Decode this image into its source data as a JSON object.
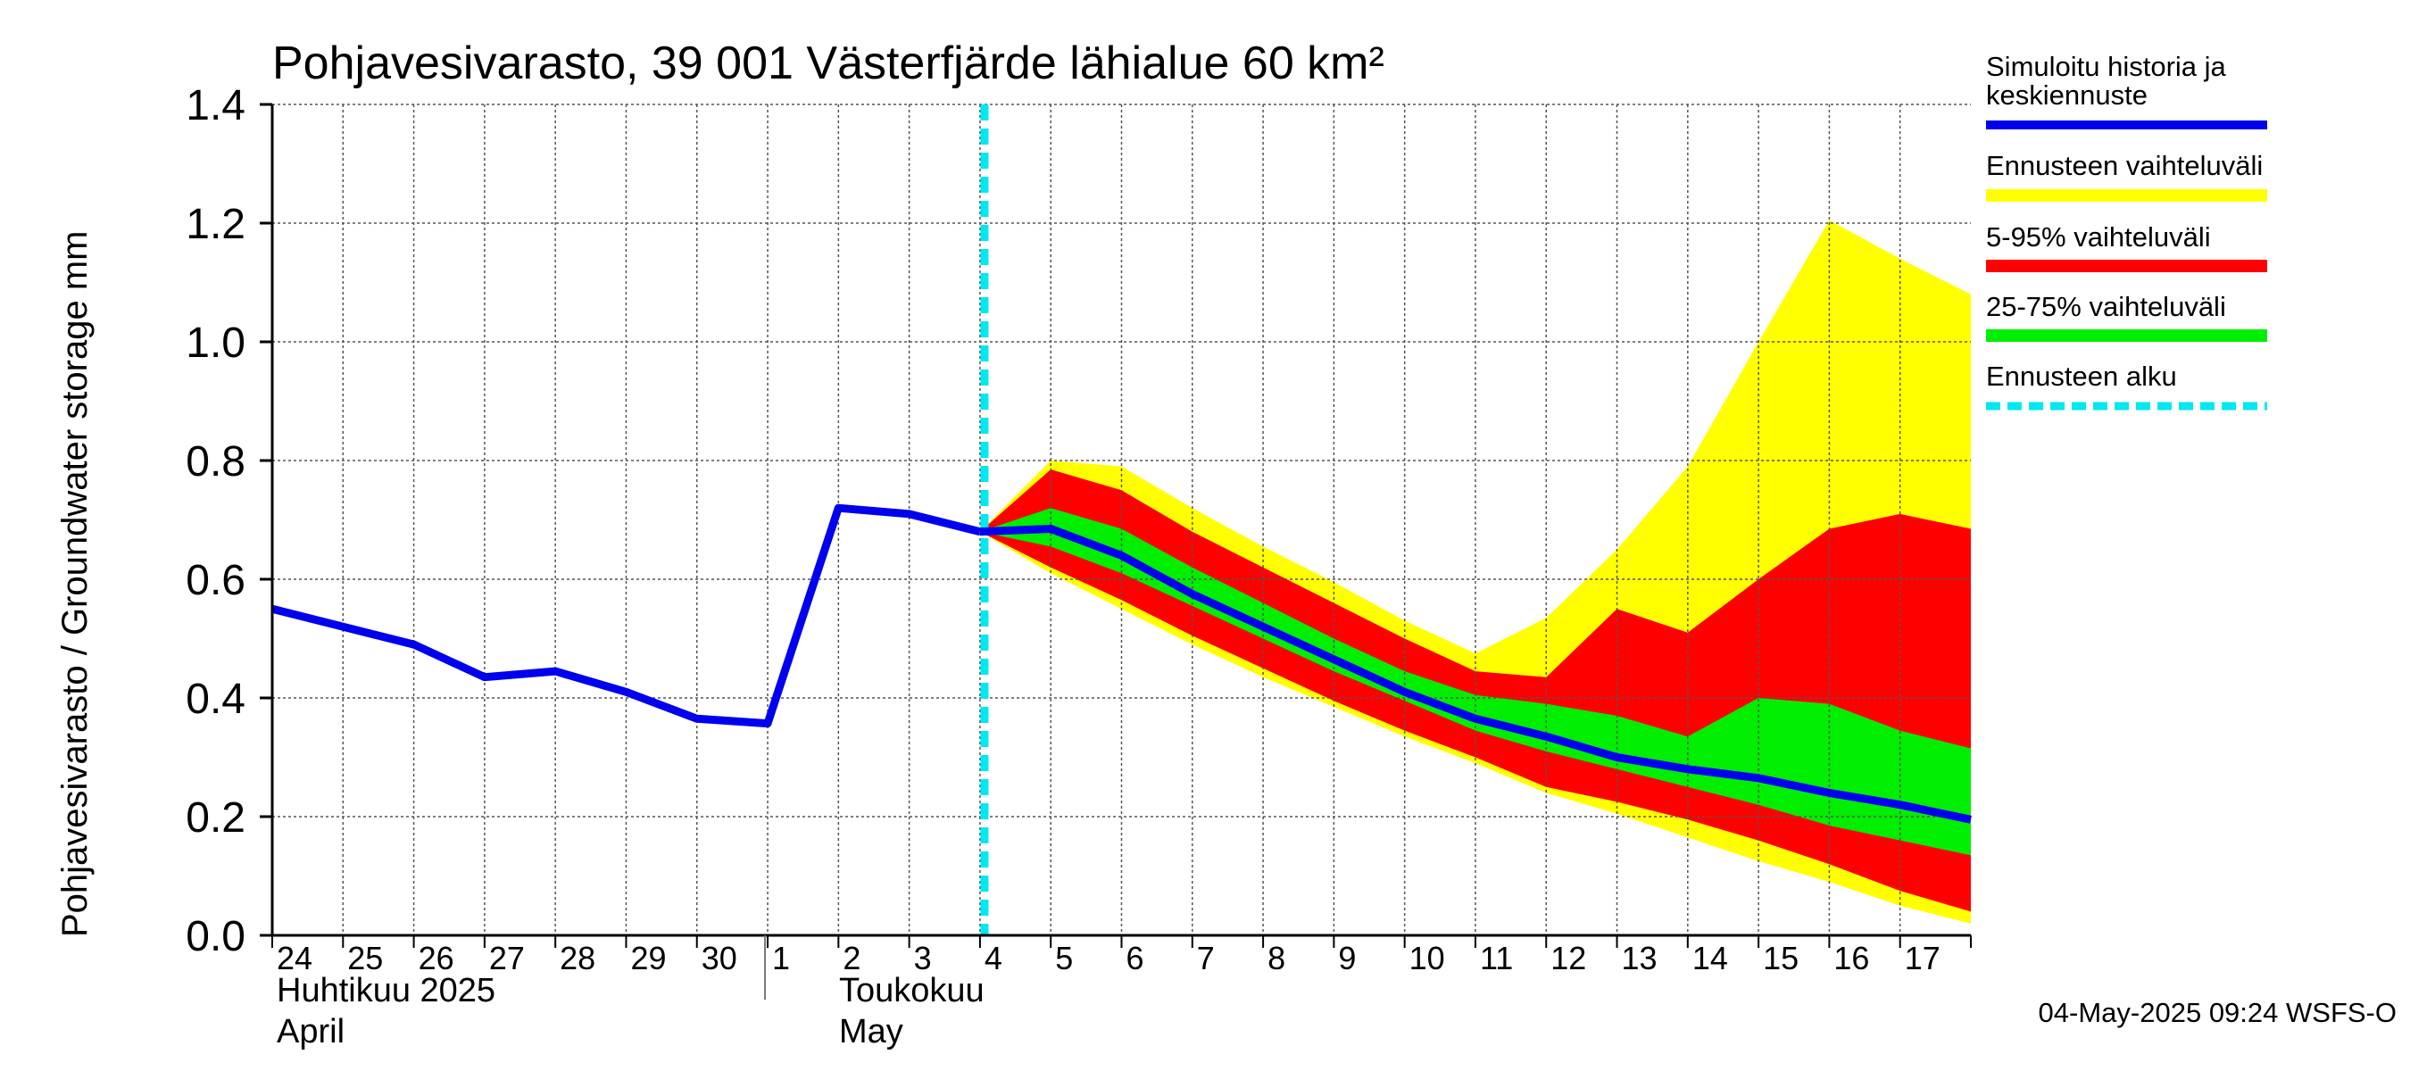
{
  "chart_data": {
    "type": "line",
    "title": "Pohjavesivarasto, 39 001 Västerfjärde lähialue 60 km²",
    "ylabel": "Pohjavesivarasto / Groundwater storage   mm",
    "ylim": [
      0,
      1.4
    ],
    "yticks": [
      "0.0",
      "0.2",
      "0.4",
      "0.6",
      "0.8",
      "1.0",
      "1.2",
      "1.4"
    ],
    "ytick_values": [
      0,
      0.2,
      0.4,
      0.6,
      0.8,
      1.0,
      1.2,
      1.4
    ],
    "day_labels": [
      "24",
      "25",
      "26",
      "27",
      "28",
      "29",
      "30",
      "1",
      "2",
      "3",
      "4",
      "5",
      "6",
      "7",
      "8",
      "9",
      "10",
      "11",
      "12",
      "13",
      "14",
      "15",
      "16",
      "17"
    ],
    "month_labels": {
      "april_fi": "Huhtikuu  2025",
      "april_en": "April",
      "may_fi": "Toukokuu",
      "may_en": "May"
    },
    "x_start_index": 0,
    "x_end_index": 24,
    "forecast_start_index": 10.0,
    "history": {
      "x": [
        0,
        1,
        2,
        3,
        4,
        5,
        6,
        7,
        8,
        9,
        10
      ],
      "y": [
        0.55,
        0.52,
        0.49,
        0.435,
        0.445,
        0.41,
        0.365,
        0.357,
        0.72,
        0.71,
        0.68
      ]
    },
    "forecast_x": [
      10,
      11,
      12,
      13,
      14,
      15,
      16,
      17,
      18,
      19,
      20,
      21,
      22,
      23,
      24
    ],
    "median": [
      0.68,
      0.685,
      0.64,
      0.575,
      0.52,
      0.465,
      0.41,
      0.365,
      0.335,
      0.3,
      0.28,
      0.265,
      0.24,
      0.22,
      0.195
    ],
    "range_min": [
      0.68,
      0.61,
      0.55,
      0.49,
      0.435,
      0.385,
      0.335,
      0.29,
      0.24,
      0.205,
      0.165,
      0.125,
      0.09,
      0.05,
      0.02
    ],
    "range_max": [
      0.68,
      0.8,
      0.79,
      0.72,
      0.655,
      0.595,
      0.53,
      0.475,
      0.535,
      0.65,
      0.79,
      1.0,
      1.205,
      1.14,
      1.08
    ],
    "p5": [
      0.68,
      0.62,
      0.565,
      0.505,
      0.45,
      0.395,
      0.345,
      0.3,
      0.25,
      0.225,
      0.195,
      0.16,
      0.12,
      0.075,
      0.04
    ],
    "p95": [
      0.68,
      0.785,
      0.75,
      0.68,
      0.62,
      0.56,
      0.5,
      0.445,
      0.435,
      0.55,
      0.51,
      0.6,
      0.685,
      0.71,
      0.685
    ],
    "p25": [
      0.68,
      0.655,
      0.61,
      0.555,
      0.5,
      0.445,
      0.395,
      0.345,
      0.31,
      0.28,
      0.25,
      0.22,
      0.185,
      0.16,
      0.135
    ],
    "p75": [
      0.68,
      0.72,
      0.685,
      0.62,
      0.56,
      0.5,
      0.445,
      0.405,
      0.39,
      0.37,
      0.335,
      0.4,
      0.39,
      0.345,
      0.315
    ],
    "colors": {
      "history": "#0000ee",
      "range": "#ffff00",
      "p5_95": "#ff0000",
      "p25_75": "#00ee00",
      "forecast_start": "#00e8f0",
      "grid": "#555555"
    }
  },
  "legend": {
    "history_line1": "Simuloitu historia ja",
    "history_line2": "keskiennuste",
    "range": "Ennusteen vaihteluväli",
    "p5_95": "5-95% vaihteluväli",
    "p25_75": "25-75% vaihteluväli",
    "forecast_start": "Ennusteen alku"
  },
  "footer": {
    "timestamp": "04-May-2025 09:24 WSFS-O"
  }
}
